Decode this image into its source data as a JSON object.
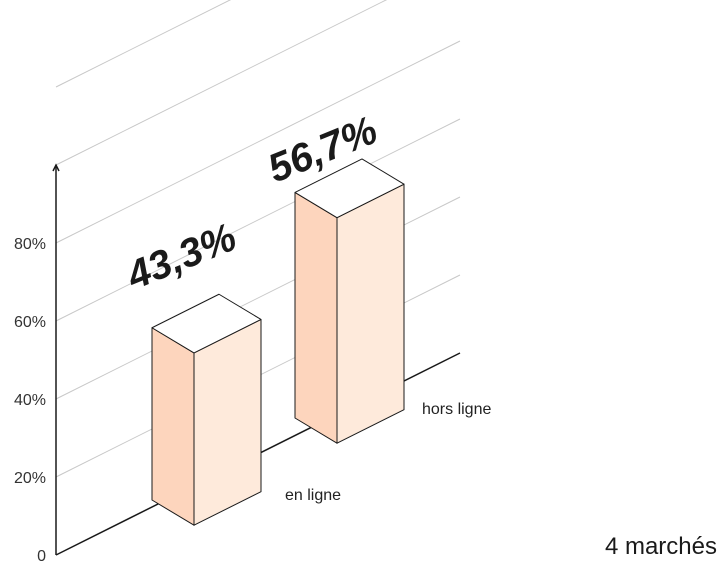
{
  "chart_data": {
    "type": "bar",
    "title": "",
    "xlabel": "",
    "ylabel": "",
    "categories": [
      "en ligne",
      "hors ligne"
    ],
    "values": [
      43.3,
      56.7
    ],
    "value_labels": [
      "43,3%",
      "56,7%"
    ],
    "ylim": [
      0,
      100
    ],
    "y_ticks": [
      {
        "value": 0,
        "label": "0"
      },
      {
        "value": 20,
        "label": "20%"
      },
      {
        "value": 40,
        "label": "40%"
      },
      {
        "value": 60,
        "label": "60%"
      },
      {
        "value": 80,
        "label": "80%"
      }
    ],
    "grid": true,
    "style": "3d-isometric",
    "colors": {
      "front": "#fdd5bd",
      "side": "#feeadb",
      "top": "#ffffff",
      "edge": "#1a1a1a",
      "grid": "#c8c8c8"
    }
  },
  "footnote": "4 marchés"
}
